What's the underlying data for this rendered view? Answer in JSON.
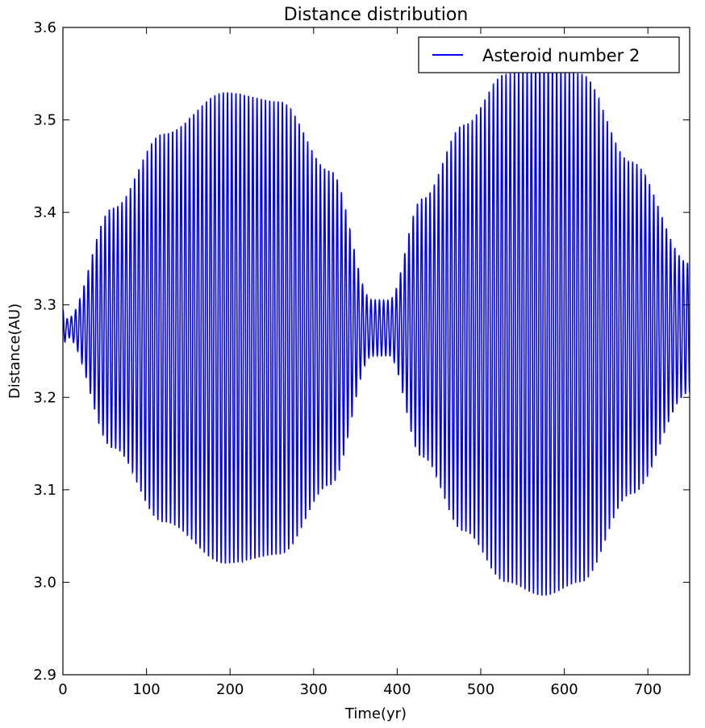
{
  "chart_data": {
    "type": "line",
    "title": "Distance distribution",
    "xlabel": "Time(yr)",
    "ylabel": "Distance(AU)",
    "xlim": [
      0,
      750
    ],
    "ylim": [
      2.9,
      3.6
    ],
    "xticks": [
      0,
      100,
      200,
      300,
      400,
      500,
      600,
      700
    ],
    "xtick_labels": [
      "0",
      "100",
      "200",
      "300",
      "400",
      "500",
      "600",
      "700"
    ],
    "yticks": [
      2.9,
      3.0,
      3.1,
      3.2,
      3.3,
      3.4,
      3.5,
      3.6
    ],
    "ytick_labels": [
      "2.9",
      "3.0",
      "3.1",
      "3.2",
      "3.3",
      "3.4",
      "3.5",
      "3.6"
    ],
    "grid": false,
    "legend_position": "top-right",
    "series": [
      {
        "name": "Asteroid number 2",
        "color": "#0000ff",
        "oscillation_period_yr": 5.05,
        "envelope": {
          "center": 3.275,
          "amplitude_x": [
            0,
            5,
            60,
            120,
            195,
            260,
            320,
            370,
            390,
            430,
            480,
            530,
            575,
            620,
            680,
            750
          ],
          "amplitude_y": [
            0.02,
            0.01,
            0.13,
            0.21,
            0.255,
            0.245,
            0.17,
            0.03,
            0.03,
            0.14,
            0.22,
            0.275,
            0.29,
            0.275,
            0.18,
            0.07
          ]
        },
        "peak_points": [
          {
            "x": 195,
            "max": 3.527,
            "min": 3.012
          },
          {
            "x": 575,
            "max": 3.555,
            "min": 2.976
          }
        ]
      }
    ]
  }
}
